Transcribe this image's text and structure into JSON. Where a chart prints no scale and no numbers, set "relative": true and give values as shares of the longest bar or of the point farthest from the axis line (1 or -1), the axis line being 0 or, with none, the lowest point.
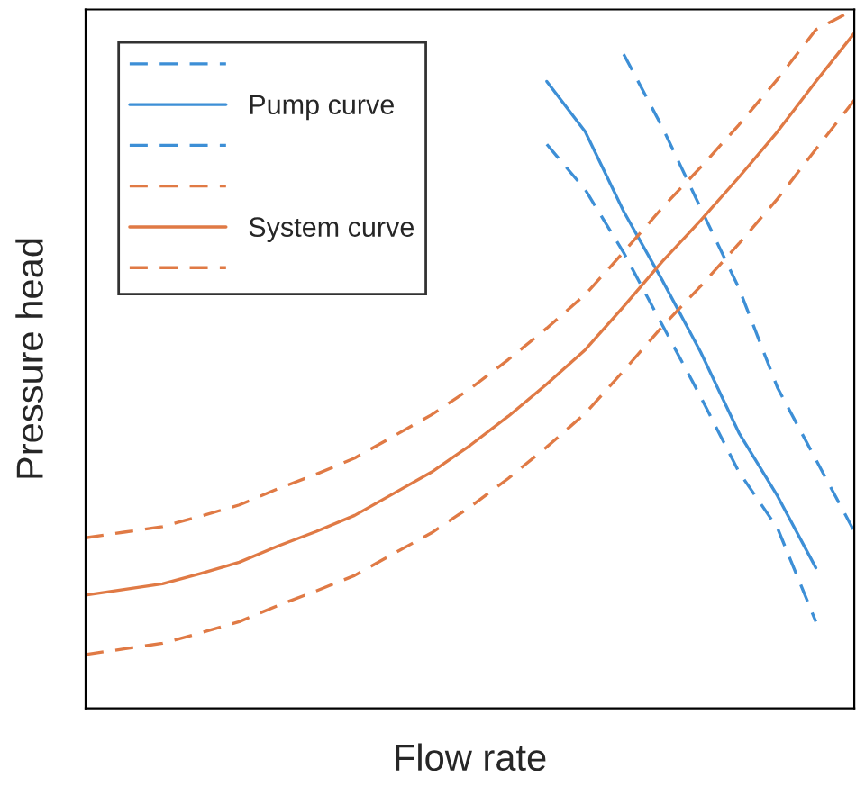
{
  "chart_data": {
    "type": "line",
    "relative": true,
    "xlabel": "Flow rate",
    "ylabel": "Pressure head",
    "legend": "top left",
    "categories": [
      null,
      null,
      null,
      null,
      null,
      null,
      null,
      null,
      null,
      null,
      null,
      null,
      null,
      null,
      null,
      null,
      null,
      null,
      null,
      null,
      null
    ],
    "series": [
      {
        "color": "#3d8fd6",
        "line_style": "dashed",
        "values": [
          null,
          null,
          null,
          null,
          null,
          null,
          null,
          null,
          null,
          null,
          null,
          null,
          0.807,
          0.742,
          0.652,
          0.549,
          0.446,
          0.338,
          0.258,
          0.124,
          null
        ]
      },
      {
        "name": "Pump curve",
        "color": "#3d8fd6",
        "line_style": "solid",
        "values": [
          null,
          null,
          null,
          null,
          null,
          null,
          null,
          null,
          null,
          null,
          null,
          null,
          0.897,
          0.825,
          0.711,
          0.613,
          0.51,
          0.394,
          0.304,
          0.201,
          null
        ]
      },
      {
        "color": "#3d8fd6",
        "line_style": "dashed",
        "values": [
          null,
          null,
          null,
          null,
          null,
          null,
          null,
          null,
          null,
          null,
          null,
          null,
          null,
          null,
          0.936,
          0.832,
          0.716,
          0.601,
          0.459,
          0.356,
          0.253
        ]
      },
      {
        "color": "#e07a45",
        "line_style": "dashed",
        "values": [
          0.244,
          0.252,
          0.26,
          0.275,
          0.291,
          0.314,
          0.335,
          0.358,
          0.389,
          0.42,
          0.457,
          0.499,
          0.544,
          0.592,
          0.653,
          0.716,
          0.774,
          0.835,
          0.9,
          0.971,
          1.0
        ]
      },
      {
        "name": "System curve",
        "color": "#e07a45",
        "line_style": "solid",
        "values": [
          0.162,
          0.17,
          0.178,
          0.193,
          0.209,
          0.232,
          0.253,
          0.276,
          0.307,
          0.338,
          0.376,
          0.418,
          0.464,
          0.513,
          0.575,
          0.639,
          0.698,
          0.76,
          0.825,
          0.897,
          0.966
        ]
      },
      {
        "color": "#e07a45",
        "line_style": "dashed",
        "values": [
          0.077,
          0.085,
          0.093,
          0.108,
          0.124,
          0.147,
          0.168,
          0.19,
          0.221,
          0.251,
          0.288,
          0.329,
          0.374,
          0.422,
          0.483,
          0.546,
          0.604,
          0.665,
          0.729,
          0.8,
          0.87
        ]
      }
    ]
  }
}
